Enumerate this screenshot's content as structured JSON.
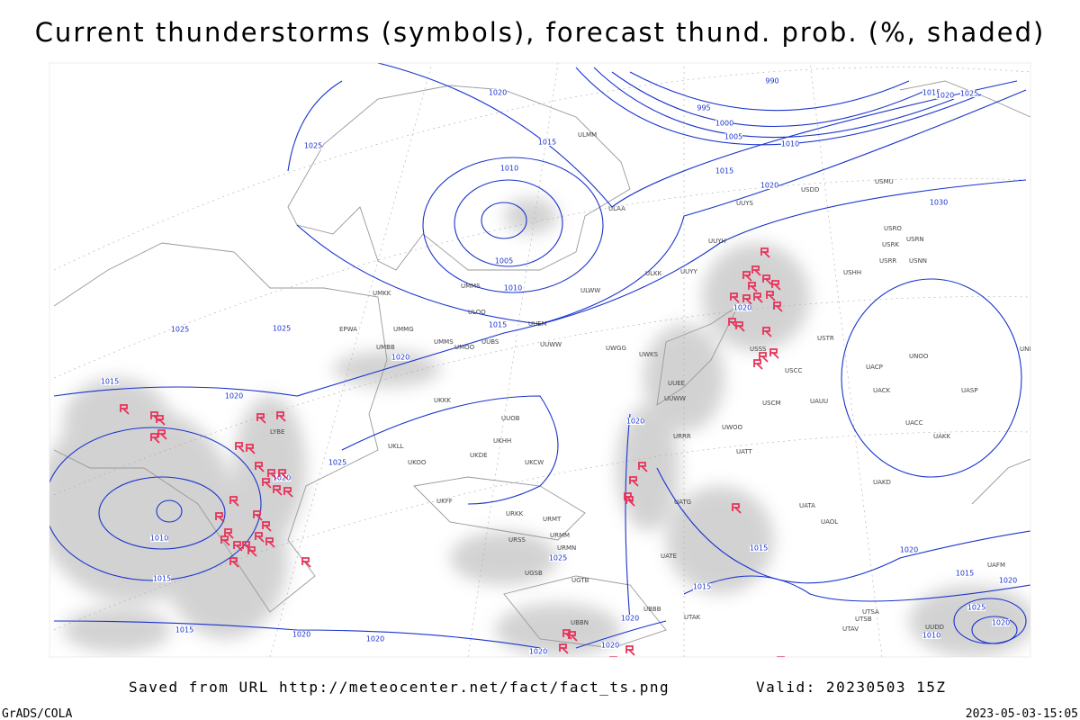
{
  "title": "Current thunderstorms (symbols), forecast thund. prob. (%, shaded)",
  "footer": {
    "source": "Saved from URL http://meteocenter.net/fact/fact_ts.png",
    "valid": "Valid: 20230503 15Z",
    "software": "GrADS/COLA",
    "timestamp": "2023-05-03-15:05"
  },
  "isobar_labels": [
    1020,
    990,
    1015,
    1020,
    1025,
    995,
    1000,
    1005,
    1010,
    1015,
    1025,
    1010,
    1015,
    1020,
    1030,
    1005,
    1010,
    1015,
    1025,
    1025,
    1020,
    1020,
    1015,
    1020,
    1020,
    1025,
    1020,
    1010,
    1015,
    1025,
    1015,
    1020,
    1015,
    1015,
    1020,
    1020,
    1015,
    1020,
    1020,
    1020,
    1020,
    1025,
    1020,
    1010
  ],
  "stations": [
    "UUYS",
    "UUYH",
    "USRO",
    "USRN",
    "USRK",
    "USRR",
    "USNN",
    "USHH",
    "ULAA",
    "ULKK",
    "UUYY",
    "ULWW",
    "UUEM",
    "UMKK",
    "EPWA",
    "UMMG",
    "UMBB",
    "UMMS",
    "UMOO",
    "UUBS",
    "UUWW",
    "UWGG",
    "UWKS",
    "UUEE",
    "USSS",
    "USTR",
    "UNBB",
    "USCC",
    "UNOO",
    "UACP",
    "UACK",
    "UASP",
    "UUOB",
    "UKKK",
    "UKHH",
    "UKDE",
    "UKOO",
    "UKCW",
    "UKFF",
    "URRR",
    "UATG",
    "UATE",
    "UATT",
    "UAOL",
    "UATA",
    "UACC",
    "UAKK",
    "UAKD",
    "USCM",
    "UAUU",
    "UWOO",
    "UKLL",
    "LYBE",
    "URMT",
    "URMM",
    "URMN",
    "UGSB",
    "UGTB",
    "UBBN",
    "UTAK",
    "UTAV",
    "UTSA",
    "UAFM",
    "UUDD",
    "ULMM",
    "ULOO",
    "UMMS",
    "USDD",
    "USMU",
    "UUWW",
    "URSS",
    "URKK",
    "UBBB",
    "UTSB"
  ]
}
